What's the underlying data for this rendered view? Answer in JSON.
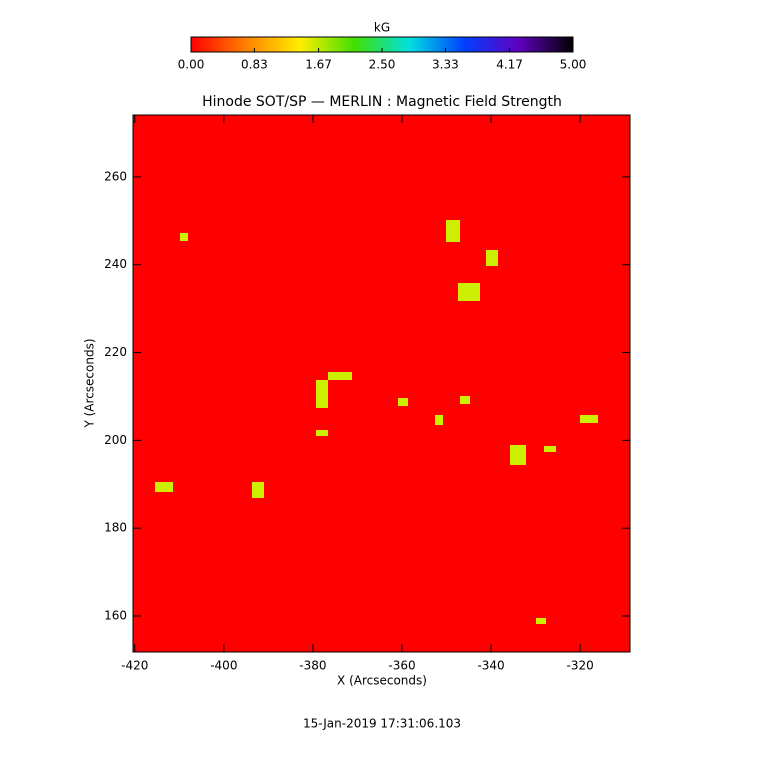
{
  "chart_data": {
    "type": "heatmap",
    "title": "Hinode SOT/SP — MERLIN : Magnetic Field Strength",
    "x_label": "X (Arcseconds)",
    "y_label": "Y (Arcseconds)",
    "xlim": [
      -420.4,
      -308.8
    ],
    "ylim": [
      151.8,
      274.1
    ],
    "xticks": [
      -420,
      -400,
      -380,
      -360,
      -340,
      -320
    ],
    "yticks": [
      160,
      180,
      200,
      220,
      240,
      260
    ],
    "colorbar": {
      "title": "kG",
      "lim": [
        0,
        5
      ],
      "ticks": [
        {
          "value": 0,
          "label": "0.00"
        },
        {
          "value": 0.83,
          "label": "0.83"
        },
        {
          "value": 1.67,
          "label": "1.67"
        },
        {
          "value": 2.5,
          "label": "2.50"
        },
        {
          "value": 3.33,
          "label": "3.33"
        },
        {
          "value": 4.17,
          "label": "4.17"
        },
        {
          "value": 5,
          "label": "5.00"
        }
      ],
      "colors": [
        "#ff0000",
        "#ff8000",
        "#ffee00",
        "#40e000",
        "#00e0e0",
        "#0040ff",
        "#6000c0",
        "#000000"
      ]
    },
    "footer": "15-Jan-2019 17:31:06.103"
  }
}
